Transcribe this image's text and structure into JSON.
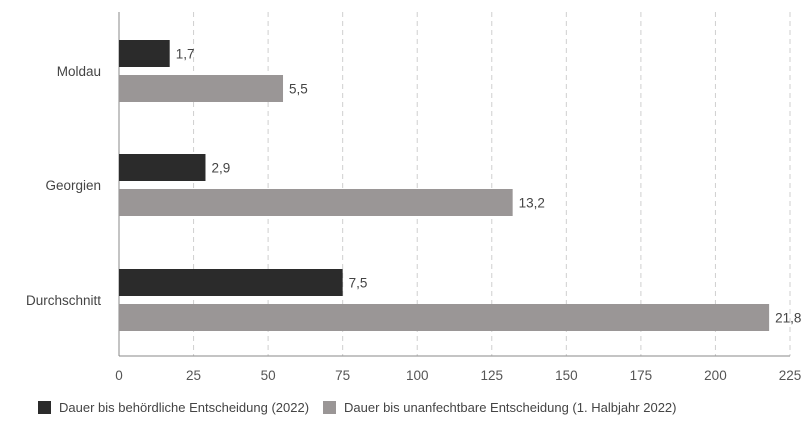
{
  "chart_data": {
    "type": "bar",
    "orientation": "horizontal",
    "categories": [
      "Moldau",
      "Georgien",
      "Durchschnitt"
    ],
    "series": [
      {
        "name": "Dauer bis behördliche Entscheidung (2022)",
        "values": [
          1.7,
          2.9,
          7.5
        ],
        "labels": [
          "1,7",
          "2,9",
          "7,5"
        ],
        "color": "#2b2b2b"
      },
      {
        "name": "Dauer bis unanfechtbare Entscheidung (1. Halbjahr 2022)",
        "values": [
          5.5,
          13.2,
          21.8
        ],
        "labels": [
          "5,5",
          "13,2",
          "21,8"
        ],
        "color": "#9a9696"
      }
    ],
    "xlim": [
      0,
      225
    ],
    "xticks": [
      "0",
      "25",
      "50",
      "75",
      "100",
      "125",
      "150",
      "175",
      "200",
      "225"
    ],
    "bar_scale_note": "",
    "grid": "vertical dashed",
    "legend_position": "bottom"
  }
}
